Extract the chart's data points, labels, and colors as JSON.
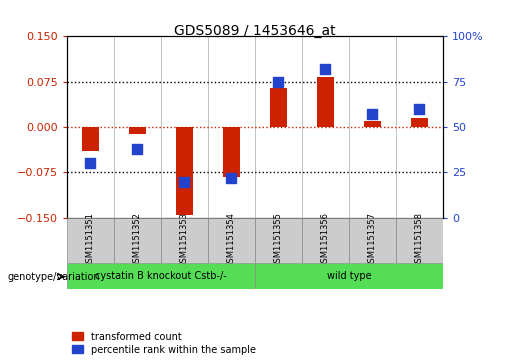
{
  "title": "GDS5089 / 1453646_at",
  "samples": [
    "GSM1151351",
    "GSM1151352",
    "GSM1151353",
    "GSM1151354",
    "GSM1151355",
    "GSM1151356",
    "GSM1151357",
    "GSM1151358"
  ],
  "transformed_count": [
    -0.04,
    -0.012,
    -0.145,
    -0.082,
    0.065,
    0.083,
    0.01,
    0.015
  ],
  "percentile_rank": [
    30,
    38,
    20,
    22,
    75,
    82,
    57,
    60
  ],
  "groups": [
    {
      "label": "cystatin B knockout Cstb-/-",
      "start": 0,
      "end": 3,
      "color": "#55dd55"
    },
    {
      "label": "wild type",
      "start": 4,
      "end": 7,
      "color": "#55dd55"
    }
  ],
  "group_row_label": "genotype/variation",
  "ylim_left": [
    -0.15,
    0.15
  ],
  "ylim_right": [
    0,
    100
  ],
  "yticks_left": [
    -0.15,
    -0.075,
    0,
    0.075,
    0.15
  ],
  "yticks_right": [
    0,
    25,
    50,
    75,
    100
  ],
  "hlines_dotted": [
    0.075,
    -0.075
  ],
  "hline_red": 0,
  "red_color": "#cc2200",
  "blue_color": "#2244cc",
  "bar_width": 0.35,
  "dot_size": 55,
  "sample_box_color": "#cccccc",
  "vline_color": "#aaaaaa",
  "legend_items": [
    {
      "color": "#cc2200",
      "label": "transformed count"
    },
    {
      "color": "#2244cc",
      "label": "percentile rank within the sample"
    }
  ]
}
